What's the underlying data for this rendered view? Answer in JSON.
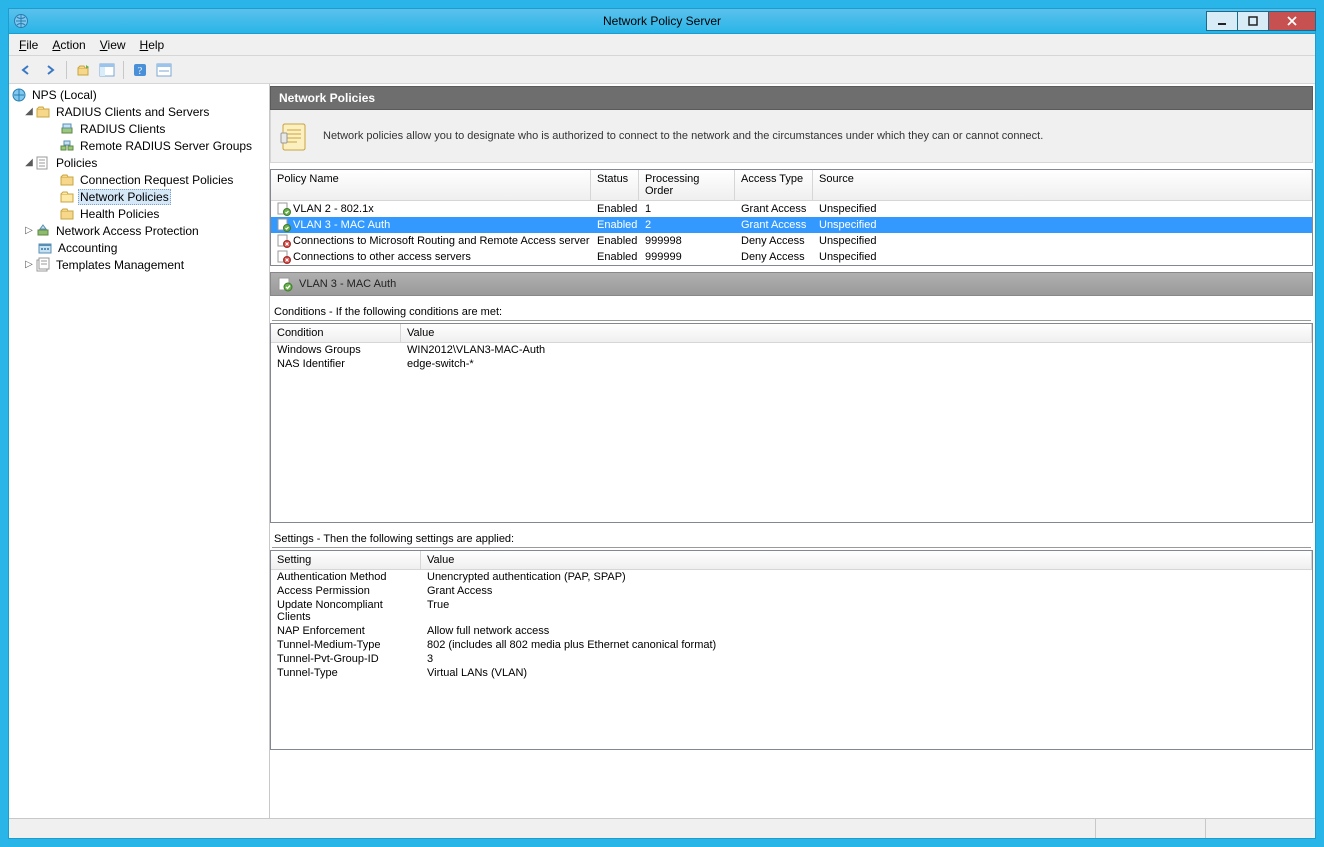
{
  "window": {
    "title": "Network Policy Server"
  },
  "menu": {
    "file": "File",
    "action": "Action",
    "view": "View",
    "help": "Help"
  },
  "tree": {
    "root": "NPS (Local)",
    "radius": "RADIUS Clients and Servers",
    "radius_clients": "RADIUS Clients",
    "remote_groups": "Remote RADIUS Server Groups",
    "policies": "Policies",
    "conn_req": "Connection Request Policies",
    "net_pol": "Network Policies",
    "health": "Health Policies",
    "nap": "Network Access Protection",
    "accounting": "Accounting",
    "templates": "Templates Management"
  },
  "header": {
    "title": "Network Policies",
    "desc": "Network policies allow you to designate who is authorized to connect to the network and the circumstances under which they can or cannot connect."
  },
  "list": {
    "columns": {
      "name": "Policy Name",
      "status": "Status",
      "order": "Processing Order",
      "access": "Access Type",
      "source": "Source"
    },
    "rows": [
      {
        "icon": "grant",
        "name": "VLAN 2 - 802.1x",
        "status": "Enabled",
        "order": "1",
        "access": "Grant Access",
        "source": "Unspecified",
        "selected": false
      },
      {
        "icon": "grant",
        "name": "VLAN 3 - MAC Auth",
        "status": "Enabled",
        "order": "2",
        "access": "Grant Access",
        "source": "Unspecified",
        "selected": true
      },
      {
        "icon": "deny",
        "name": "Connections to Microsoft Routing and Remote Access server",
        "status": "Enabled",
        "order": "999998",
        "access": "Deny Access",
        "source": "Unspecified",
        "selected": false
      },
      {
        "icon": "deny",
        "name": "Connections to other access servers",
        "status": "Enabled",
        "order": "999999",
        "access": "Deny Access",
        "source": "Unspecified",
        "selected": false
      }
    ]
  },
  "sub": {
    "title": "VLAN 3 - MAC Auth"
  },
  "conditions": {
    "title": "Conditions - If the following conditions are met:",
    "columns": {
      "c1": "Condition",
      "c2": "Value"
    },
    "rows": [
      {
        "c1": "Windows Groups",
        "c2": "WIN2012\\VLAN3-MAC-Auth"
      },
      {
        "c1": "NAS Identifier",
        "c2": "edge-switch-*"
      }
    ]
  },
  "settings": {
    "title": "Settings - Then the following settings are applied:",
    "columns": {
      "c1": "Setting",
      "c2": "Value"
    },
    "rows": [
      {
        "c1": "Authentication Method",
        "c2": "Unencrypted authentication (PAP, SPAP)"
      },
      {
        "c1": "Access Permission",
        "c2": "Grant Access"
      },
      {
        "c1": "Update Noncompliant Clients",
        "c2": "True"
      },
      {
        "c1": "NAP Enforcement",
        "c2": "Allow full network access"
      },
      {
        "c1": "Tunnel-Medium-Type",
        "c2": "802 (includes all 802 media plus Ethernet canonical format)"
      },
      {
        "c1": "Tunnel-Pvt-Group-ID",
        "c2": "3"
      },
      {
        "c1": "Tunnel-Type",
        "c2": "Virtual LANs (VLAN)"
      }
    ]
  },
  "colors": {
    "accent": "#29b5e8",
    "selected_row": "#3399ff",
    "tree_sel": "#d5e8f8",
    "header_bg": "#6e6e6e",
    "border": "#828790"
  }
}
